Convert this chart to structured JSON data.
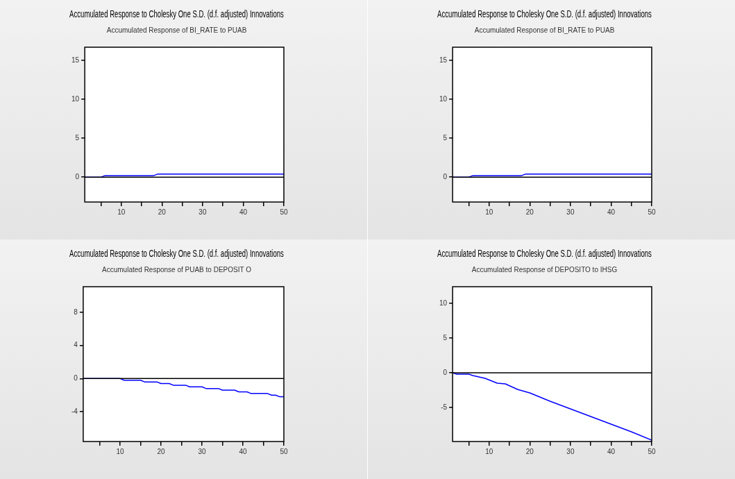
{
  "chart_data": [
    {
      "type": "line",
      "title": "Accumulated Response to Cholesky One S.D. (d.f. adjusted) Innovations",
      "subtitle": "Accumulated Response of BI_RATE to PUAB",
      "x": [
        1,
        5,
        6,
        18,
        19,
        50
      ],
      "series": [
        {
          "color": "#0000ff",
          "values": [
            0,
            0,
            0.2,
            0.2,
            0.4,
            0.4
          ]
        }
      ],
      "xlim": [
        1,
        50
      ],
      "xticks": [
        {
          "value": 5,
          "label": null
        },
        10,
        {
          "value": 15,
          "label": null
        },
        20,
        {
          "value": 25,
          "label": null
        },
        30,
        {
          "value": 35,
          "label": null
        },
        40,
        {
          "value": 45,
          "label": null
        },
        50
      ],
      "ylim": [
        -3.2,
        16.7
      ],
      "yticks": [
        0,
        5,
        10,
        15
      ],
      "ref_lines": [
        {
          "axis": "y",
          "value": 0,
          "color": "#000000"
        }
      ]
    },
    {
      "type": "line",
      "title": "Accumulated Response to Cholesky One S.D. (d.f. adjusted) Innovations",
      "subtitle": "Accumulated Response of BI_RATE to PUAB",
      "x": [
        1,
        5,
        6,
        18,
        19,
        50
      ],
      "series": [
        {
          "color": "#0000ff",
          "values": [
            0,
            0,
            0.2,
            0.2,
            0.4,
            0.4
          ]
        }
      ],
      "xlim": [
        1,
        50
      ],
      "xticks": [
        {
          "value": 5,
          "label": null
        },
        10,
        {
          "value": 15,
          "label": null
        },
        20,
        {
          "value": 25,
          "label": null
        },
        30,
        {
          "value": 35,
          "label": null
        },
        40,
        {
          "value": 45,
          "label": null
        },
        50
      ],
      "ylim": [
        -3.2,
        16.7
      ],
      "yticks": [
        0,
        5,
        10,
        15
      ],
      "ref_lines": [
        {
          "axis": "y",
          "value": 0,
          "color": "#000000"
        }
      ]
    },
    {
      "type": "line",
      "title": "Accumulated Response to Cholesky One S.D. (d.f. adjusted) Innovations",
      "subtitle": "Accumulated Response of PUAB to DEPOSIT O",
      "x": [
        1,
        10,
        11,
        15,
        16,
        19,
        20,
        22,
        23,
        26,
        27,
        30,
        31,
        34,
        35,
        38,
        39,
        41,
        42,
        46,
        47,
        48,
        49,
        50
      ],
      "series": [
        {
          "color": "#0000ff",
          "values": [
            0,
            0,
            -0.2,
            -0.2,
            -0.4,
            -0.4,
            -0.6,
            -0.6,
            -0.8,
            -0.8,
            -1.0,
            -1.0,
            -1.2,
            -1.2,
            -1.4,
            -1.4,
            -1.6,
            -1.6,
            -1.8,
            -1.8,
            -2.0,
            -2.0,
            -2.2,
            -2.2
          ]
        }
      ],
      "xlim": [
        1,
        50
      ],
      "xticks": [
        {
          "value": 5,
          "label": null
        },
        10,
        {
          "value": 15,
          "label": null
        },
        20,
        {
          "value": 25,
          "label": null
        },
        30,
        {
          "value": 35,
          "label": null
        },
        40,
        {
          "value": 45,
          "label": null
        },
        50
      ],
      "ylim": [
        -7.6,
        11.1
      ],
      "yticks": [
        -4,
        0,
        4,
        8
      ],
      "ref_lines": [
        {
          "axis": "y",
          "value": 0,
          "color": "#000000"
        }
      ]
    },
    {
      "type": "line",
      "title": "Accumulated Response to Cholesky One S.D. (d.f. adjusted) Innovations",
      "subtitle": "Accumulated Response of DEPOSITO to IHSG",
      "x": [
        1,
        2,
        5,
        6,
        9,
        12,
        14,
        17,
        20,
        25,
        30,
        35,
        40,
        45,
        50
      ],
      "series": [
        {
          "color": "#0000ff",
          "values": [
            0,
            -0.2,
            -0.2,
            -0.4,
            -0.8,
            -1.5,
            -1.6,
            -2.4,
            -2.9,
            -4.1,
            -5.2,
            -6.3,
            -7.4,
            -8.5,
            -9.7
          ]
        }
      ],
      "xlim": [
        1,
        50
      ],
      "xticks": [
        {
          "value": 5,
          "label": null
        },
        10,
        {
          "value": 15,
          "label": null
        },
        20,
        {
          "value": 25,
          "label": null
        },
        30,
        {
          "value": 35,
          "label": null
        },
        40,
        {
          "value": 45,
          "label": null
        },
        50
      ],
      "ylim": [
        -9.9,
        12.4
      ],
      "yticks": [
        -5,
        0,
        5,
        10
      ],
      "ref_lines": [
        {
          "axis": "y",
          "value": 0,
          "color": "#000000"
        }
      ]
    }
  ]
}
